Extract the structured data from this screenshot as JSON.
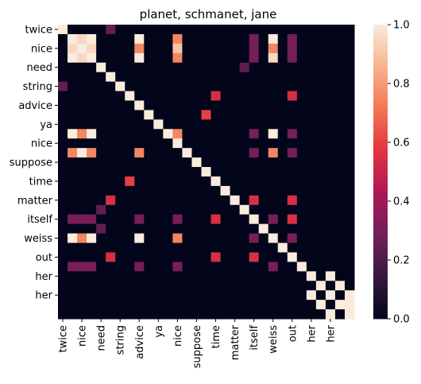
{
  "chart_data": {
    "type": "heatmap",
    "title": "planet, schmanet, jane",
    "xlabel": "",
    "ylabel": "",
    "tokens": [
      "twice",
      "\"",
      "nice",
      "\"",
      "need",
      "!",
      "string",
      "?",
      "advice",
      "?",
      "ya",
      "?",
      "nice",
      "\"",
      "suppose",
      "?",
      "time",
      "?",
      "matter",
      "?",
      "itself",
      "?",
      "weiss",
      "?",
      "out",
      "?",
      "her",
      "?",
      "her",
      "?",
      "?"
    ],
    "x_tick_labels": [
      "twice",
      "nice",
      "need",
      "string",
      "advice",
      "ya",
      "nice",
      "suppose",
      "time",
      "matter",
      "itself",
      "weiss",
      "out",
      "her",
      "her"
    ],
    "y_tick_labels": [
      "twice",
      "nice",
      "need",
      "string",
      "advice",
      "ya",
      "nice",
      "suppose",
      "time",
      "matter",
      "itself",
      "weiss",
      "out",
      "her",
      "her"
    ],
    "colorbar": {
      "min": 0.0,
      "max": 1.0,
      "ticks": [
        "0.0",
        "0.2",
        "0.4",
        "0.6",
        "0.8",
        "1.0"
      ]
    },
    "colormap": [
      "#03051a",
      "#36193e",
      "#701f57",
      "#ad1759",
      "#e13342",
      "#f37651",
      "#f6b48f",
      "#faebdd"
    ],
    "matrix": [
      [
        1,
        0,
        0,
        0,
        0,
        0,
        0,
        0,
        0,
        0,
        0,
        0,
        0,
        0,
        0,
        0,
        0,
        0,
        0,
        0,
        0,
        0,
        0,
        0,
        0,
        0,
        0,
        0,
        0,
        0,
        0
      ],
      [
        0,
        1,
        0,
        0,
        0,
        0,
        0,
        0,
        0,
        0,
        0,
        0,
        0,
        0,
        0,
        0,
        0,
        0,
        0,
        0,
        0,
        0,
        0,
        0,
        0,
        0,
        0,
        0,
        0,
        0,
        0
      ],
      [
        0,
        0,
        1,
        0,
        0,
        0,
        0,
        0,
        0,
        0,
        0,
        0,
        0,
        0,
        0,
        0,
        0,
        0,
        0,
        0,
        0,
        0,
        0,
        0,
        0,
        0,
        0,
        0,
        0,
        0,
        0
      ],
      [
        0,
        0,
        0,
        1,
        0,
        0,
        0,
        0,
        0,
        0,
        0,
        0,
        0,
        0,
        0,
        0,
        0,
        0,
        0,
        0,
        0,
        0,
        0,
        0,
        0,
        0,
        0,
        0,
        0,
        0,
        0
      ],
      [
        0,
        0,
        0,
        0,
        1,
        0,
        0,
        0,
        0,
        0,
        0,
        0,
        0,
        0,
        0,
        0,
        0,
        0,
        0,
        0,
        0,
        0,
        0,
        0,
        0,
        0,
        0,
        0,
        0,
        0,
        0
      ],
      [
        0,
        0,
        0,
        0,
        0,
        1,
        0,
        0,
        0,
        0,
        0,
        0,
        0,
        0,
        0,
        0,
        0,
        0,
        0,
        0,
        0,
        0,
        0,
        0,
        0,
        0,
        0,
        0,
        0,
        0,
        0
      ],
      [
        0,
        0,
        0,
        0,
        0,
        0,
        1,
        0,
        0,
        0,
        0,
        0,
        0,
        0,
        0,
        0,
        0,
        0,
        0,
        0,
        0,
        0,
        0,
        0,
        0,
        0,
        0,
        0,
        0,
        0,
        0
      ],
      [
        0,
        0,
        0,
        0,
        0,
        0,
        0,
        1,
        0,
        0,
        0,
        0,
        0,
        0,
        0,
        0,
        0,
        0,
        0,
        0,
        0,
        0,
        0,
        0,
        0,
        0,
        0,
        0,
        0,
        0,
        0
      ],
      [
        0,
        0,
        0,
        0,
        0,
        0,
        0,
        0,
        1,
        0,
        0,
        0,
        0,
        0,
        0,
        0,
        0,
        0,
        0,
        0,
        0,
        0,
        0,
        0,
        0,
        0,
        0,
        0,
        0,
        0,
        0
      ],
      [
        0,
        0,
        0,
        0,
        0,
        0,
        0,
        0,
        0,
        1,
        0,
        0,
        0,
        0,
        0,
        0,
        0,
        0,
        0,
        0,
        0,
        0,
        0,
        0,
        0,
        0,
        0,
        0,
        0,
        0,
        0
      ],
      [
        0,
        0,
        0,
        0,
        0,
        0,
        0,
        0,
        0,
        0,
        1,
        0,
        0,
        0,
        0,
        0,
        0,
        0,
        0,
        0,
        0,
        0,
        0,
        0,
        0,
        0,
        0,
        0,
        0,
        0,
        0
      ],
      [
        0,
        0,
        0,
        0,
        0,
        0,
        0,
        0,
        0,
        0,
        0,
        1,
        0,
        0,
        0,
        0,
        0,
        0,
        0,
        0,
        0,
        0,
        0,
        0,
        0,
        0,
        0,
        0,
        0,
        0,
        0
      ],
      [
        0,
        0,
        0,
        0,
        0,
        0,
        0,
        0,
        0,
        0,
        0,
        0,
        1,
        0,
        0,
        0,
        0,
        0,
        0,
        0,
        0,
        0,
        0,
        0,
        0,
        0,
        0,
        0,
        0,
        0,
        0
      ],
      [
        0,
        0,
        0,
        0,
        0,
        0,
        0,
        0,
        0,
        0,
        0,
        0,
        0,
        1,
        0,
        0,
        0,
        0,
        0,
        0,
        0,
        0,
        0,
        0,
        0,
        0,
        0,
        0,
        0,
        0,
        0
      ],
      [
        0,
        0,
        0,
        0,
        0,
        0,
        0,
        0,
        0,
        0,
        0,
        0,
        0,
        0,
        1,
        0,
        0,
        0,
        0,
        0,
        0,
        0,
        0,
        0,
        0,
        0,
        0,
        0,
        0,
        0,
        0
      ],
      [
        0,
        0,
        0,
        0,
        0,
        0,
        0,
        0,
        0,
        0,
        0,
        0,
        0,
        0,
        0,
        1,
        0,
        0,
        0,
        0,
        0,
        0,
        0,
        0,
        0,
        0,
        0,
        0,
        0,
        0,
        0
      ],
      [
        0,
        0,
        0,
        0,
        0,
        0,
        0,
        0,
        0,
        0,
        0,
        0,
        0,
        0,
        0,
        0,
        1,
        0,
        0,
        0,
        0,
        0,
        0,
        0,
        0,
        0,
        0,
        0,
        0,
        0,
        0
      ],
      [
        0,
        0,
        0,
        0,
        0,
        0,
        0,
        0,
        0,
        0,
        0,
        0,
        0,
        0,
        0,
        0,
        0,
        1,
        0,
        0,
        0,
        0,
        0,
        0,
        0,
        0,
        0,
        0,
        0,
        0,
        0
      ],
      [
        0,
        0,
        0,
        0,
        0,
        0,
        0,
        0,
        0,
        0,
        0,
        0,
        0,
        0,
        0,
        0,
        0,
        0,
        1,
        0,
        0,
        0,
        0,
        0,
        0,
        0,
        0,
        0,
        0,
        0,
        0
      ],
      [
        0,
        0,
        0,
        0,
        0,
        0,
        0,
        0,
        0,
        0,
        0,
        0,
        0,
        0,
        0,
        0,
        0,
        0,
        0,
        1,
        0,
        0,
        0,
        0,
        0,
        0,
        0,
        0,
        0,
        0,
        0
      ],
      [
        0,
        0,
        0,
        0,
        0,
        0,
        0,
        0,
        0,
        0,
        0,
        0,
        0,
        0,
        0,
        0,
        0,
        0,
        0,
        0,
        1,
        0,
        0,
        0,
        0,
        0,
        0,
        0,
        0,
        0,
        0
      ],
      [
        0,
        0,
        0,
        0,
        0,
        0,
        0,
        0,
        0,
        0,
        0,
        0,
        0,
        0,
        0,
        0,
        0,
        0,
        0,
        0,
        0,
        1,
        0,
        0,
        0,
        0,
        0,
        0,
        0,
        0,
        0
      ],
      [
        0,
        0,
        0,
        0,
        0,
        0,
        0,
        0,
        0,
        0,
        0,
        0,
        0,
        0,
        0,
        0,
        0,
        0,
        0,
        0,
        0,
        0,
        1,
        0,
        0,
        0,
        0,
        0,
        0,
        0,
        0
      ],
      [
        0,
        0,
        0,
        0,
        0,
        0,
        0,
        0,
        0,
        0,
        0,
        0,
        0,
        0,
        0,
        0,
        0,
        0,
        0,
        0,
        0,
        0,
        0,
        1,
        0,
        0,
        0,
        0,
        0,
        0,
        0
      ],
      [
        0,
        0,
        0,
        0,
        0,
        0,
        0,
        0,
        0,
        0,
        0,
        0,
        0,
        0,
        0,
        0,
        0,
        0,
        0,
        0,
        0,
        0,
        0,
        0,
        1,
        0,
        0,
        0,
        0,
        0,
        0
      ],
      [
        0,
        0,
        0,
        0,
        0,
        0,
        0,
        0,
        0,
        0,
        0,
        0,
        0,
        0,
        0,
        0,
        0,
        0,
        0,
        0,
        0,
        0,
        0,
        0,
        0,
        1,
        0,
        0,
        0,
        0,
        0
      ],
      [
        0,
        0,
        0,
        0,
        0,
        0,
        0,
        0,
        0,
        0,
        0,
        0,
        0,
        0,
        0,
        0,
        0,
        0,
        0,
        0,
        0,
        0,
        0,
        0,
        0,
        0,
        1,
        0,
        0,
        0,
        0
      ],
      [
        0,
        0,
        0,
        0,
        0,
        0,
        0,
        0,
        0,
        0,
        0,
        0,
        0,
        0,
        0,
        0,
        0,
        0,
        0,
        0,
        0,
        0,
        0,
        0,
        0,
        0,
        0,
        1,
        0,
        0,
        0
      ],
      [
        0,
        0,
        0,
        0,
        0,
        0,
        0,
        0,
        0,
        0,
        0,
        0,
        0,
        0,
        0,
        0,
        0,
        0,
        0,
        0,
        0,
        0,
        0,
        0,
        0,
        0,
        0,
        0,
        1,
        0,
        0
      ],
      [
        0,
        0,
        0,
        0,
        0,
        0,
        0,
        0,
        0,
        0,
        0,
        0,
        0,
        0,
        0,
        0,
        0,
        0,
        0,
        0,
        0,
        0,
        0,
        0,
        0,
        0,
        0,
        0,
        0,
        1,
        0
      ],
      [
        0,
        0,
        0,
        0,
        0,
        0,
        0,
        0,
        0,
        0,
        0,
        0,
        0,
        0,
        0,
        0,
        0,
        0,
        0,
        0,
        0,
        0,
        0,
        0,
        0,
        0,
        0,
        0,
        0,
        0,
        1
      ]
    ],
    "off_diagonal": [
      [
        0,
        5,
        0.25
      ],
      [
        1,
        2,
        0.95
      ],
      [
        1,
        3,
        1.0
      ],
      [
        1,
        8,
        1.0
      ],
      [
        1,
        12,
        0.75
      ],
      [
        1,
        20,
        0.3
      ],
      [
        1,
        22,
        1.0
      ],
      [
        1,
        24,
        0.3
      ],
      [
        2,
        1,
        0.95
      ],
      [
        2,
        3,
        0.95
      ],
      [
        2,
        8,
        0.75
      ],
      [
        2,
        12,
        0.9
      ],
      [
        2,
        20,
        0.3
      ],
      [
        2,
        22,
        0.75
      ],
      [
        2,
        24,
        0.3
      ],
      [
        3,
        1,
        1.0
      ],
      [
        3,
        2,
        0.95
      ],
      [
        3,
        8,
        1.0
      ],
      [
        3,
        12,
        0.75
      ],
      [
        3,
        20,
        0.3
      ],
      [
        3,
        22,
        0.95
      ],
      [
        3,
        24,
        0.3
      ],
      [
        4,
        19,
        0.25
      ],
      [
        6,
        0,
        0.25
      ],
      [
        7,
        16,
        0.55
      ],
      [
        7,
        24,
        0.55
      ],
      [
        9,
        15,
        0.6
      ],
      [
        11,
        1,
        1.0
      ],
      [
        11,
        2,
        0.75
      ],
      [
        11,
        3,
        1.0
      ],
      [
        11,
        12,
        0.75
      ],
      [
        11,
        20,
        0.3
      ],
      [
        11,
        22,
        1.0
      ],
      [
        11,
        24,
        0.3
      ],
      [
        13,
        1,
        0.75
      ],
      [
        13,
        2,
        1.0
      ],
      [
        13,
        3,
        0.75
      ],
      [
        13,
        8,
        0.75
      ],
      [
        13,
        20,
        0.3
      ],
      [
        13,
        22,
        0.75
      ],
      [
        13,
        24,
        0.3
      ],
      [
        16,
        7,
        0.6
      ],
      [
        18,
        5,
        0.55
      ],
      [
        18,
        20,
        0.55
      ],
      [
        18,
        24,
        0.55
      ],
      [
        19,
        4,
        0.25
      ],
      [
        20,
        1,
        0.3
      ],
      [
        20,
        2,
        0.3
      ],
      [
        20,
        3,
        0.3
      ],
      [
        20,
        8,
        0.3
      ],
      [
        20,
        12,
        0.3
      ],
      [
        20,
        16,
        0.55
      ],
      [
        20,
        22,
        0.3
      ],
      [
        20,
        24,
        0.55
      ],
      [
        21,
        4,
        0.25
      ],
      [
        22,
        1,
        1.0
      ],
      [
        22,
        2,
        0.75
      ],
      [
        22,
        3,
        1.0
      ],
      [
        22,
        8,
        1.0
      ],
      [
        22,
        12,
        0.75
      ],
      [
        22,
        20,
        0.3
      ],
      [
        22,
        24,
        0.3
      ],
      [
        24,
        5,
        0.55
      ],
      [
        24,
        16,
        0.55
      ],
      [
        24,
        20,
        0.55
      ],
      [
        25,
        1,
        0.3
      ],
      [
        25,
        2,
        0.3
      ],
      [
        25,
        3,
        0.3
      ],
      [
        25,
        8,
        0.3
      ],
      [
        25,
        12,
        0.3
      ],
      [
        25,
        22,
        0.3
      ],
      [
        26,
        28,
        1.0
      ],
      [
        26,
        29,
        0.0
      ],
      [
        27,
        29,
        1.0
      ],
      [
        28,
        26,
        1.0
      ],
      [
        28,
        30,
        1.0
      ],
      [
        29,
        27,
        1.0
      ],
      [
        29,
        30,
        1.0
      ],
      [
        30,
        28,
        1.0
      ]
    ]
  }
}
